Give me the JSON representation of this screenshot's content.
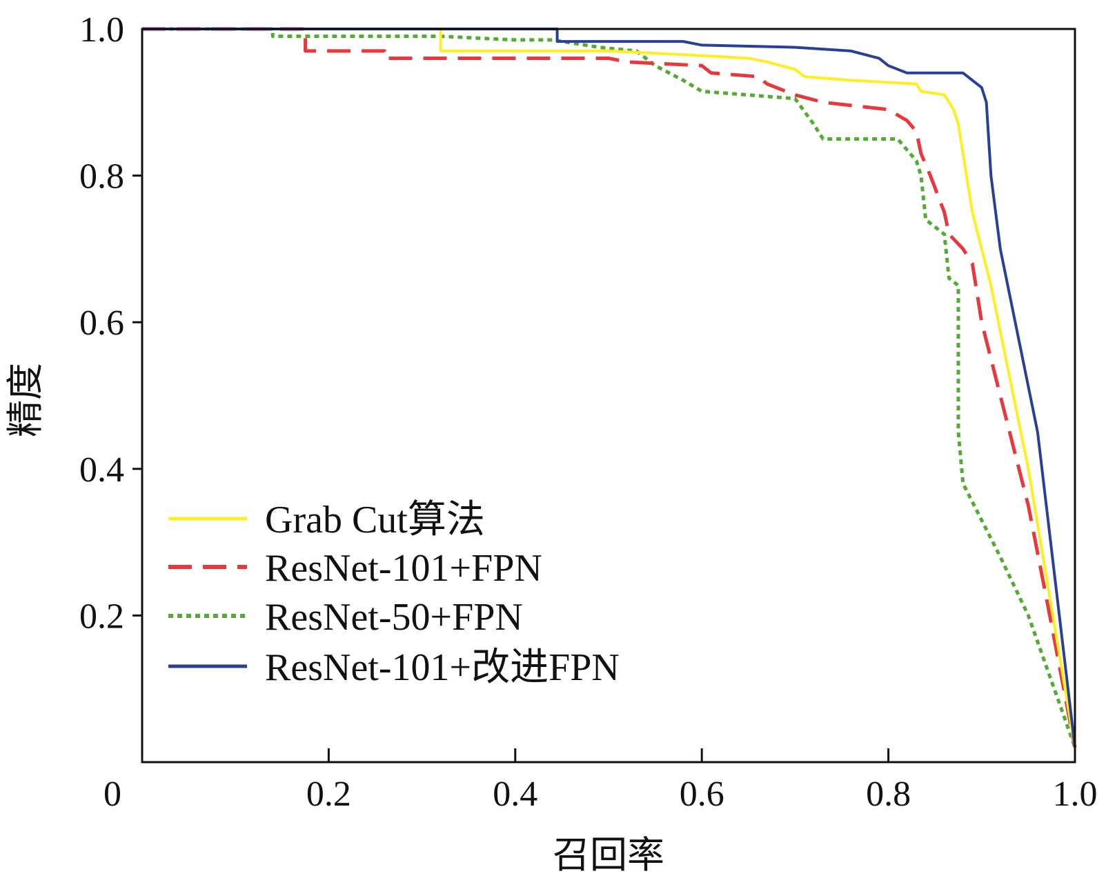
{
  "chart_data": {
    "type": "line",
    "title": "",
    "xlabel": "召回率",
    "ylabel": "精度",
    "xlim": [
      0,
      1.0
    ],
    "ylim": [
      0,
      1.0
    ],
    "x_ticks": [
      {
        "value": 0,
        "label": "0"
      },
      {
        "value": 0.2,
        "label": "0.2"
      },
      {
        "value": 0.4,
        "label": "0.4"
      },
      {
        "value": 0.6,
        "label": "0.6"
      },
      {
        "value": 0.8,
        "label": "0.8"
      },
      {
        "value": 1.0,
        "label": "1.0"
      }
    ],
    "y_ticks": [
      {
        "value": 0.2,
        "label": "0.2"
      },
      {
        "value": 0.4,
        "label": "0.4"
      },
      {
        "value": 0.6,
        "label": "0.6"
      },
      {
        "value": 0.8,
        "label": "0.8"
      },
      {
        "value": 1.0,
        "label": "1.0"
      }
    ],
    "grid": false,
    "legend_position": "lower-left",
    "series": [
      {
        "name": "Grab Cut算法",
        "color": "#ffee22",
        "style": "solid",
        "points": [
          [
            0,
            1.0
          ],
          [
            0.32,
            1.0
          ],
          [
            0.32,
            0.97
          ],
          [
            0.5,
            0.97
          ],
          [
            0.58,
            0.965
          ],
          [
            0.65,
            0.96
          ],
          [
            0.67,
            0.955
          ],
          [
            0.7,
            0.945
          ],
          [
            0.71,
            0.935
          ],
          [
            0.76,
            0.93
          ],
          [
            0.83,
            0.925
          ],
          [
            0.835,
            0.915
          ],
          [
            0.86,
            0.91
          ],
          [
            0.87,
            0.89
          ],
          [
            0.875,
            0.87
          ],
          [
            0.88,
            0.83
          ],
          [
            0.89,
            0.75
          ],
          [
            0.9,
            0.7
          ],
          [
            0.91,
            0.65
          ],
          [
            0.95,
            0.4
          ],
          [
            1.0,
            0.02
          ]
        ]
      },
      {
        "name": "ResNet-101+FPN",
        "color": "#e8383d",
        "style": "dashed",
        "points": [
          [
            0,
            1.0
          ],
          [
            0.175,
            1.0
          ],
          [
            0.175,
            0.97
          ],
          [
            0.26,
            0.97
          ],
          [
            0.26,
            0.96
          ],
          [
            0.5,
            0.96
          ],
          [
            0.52,
            0.955
          ],
          [
            0.6,
            0.95
          ],
          [
            0.61,
            0.94
          ],
          [
            0.66,
            0.935
          ],
          [
            0.67,
            0.925
          ],
          [
            0.7,
            0.91
          ],
          [
            0.73,
            0.9
          ],
          [
            0.8,
            0.89
          ],
          [
            0.82,
            0.875
          ],
          [
            0.83,
            0.86
          ],
          [
            0.835,
            0.83
          ],
          [
            0.845,
            0.8
          ],
          [
            0.86,
            0.75
          ],
          [
            0.865,
            0.72
          ],
          [
            0.88,
            0.7
          ],
          [
            0.89,
            0.68
          ],
          [
            0.9,
            0.6
          ],
          [
            0.92,
            0.5
          ],
          [
            0.95,
            0.35
          ],
          [
            0.97,
            0.22
          ],
          [
            1.0,
            0.02
          ]
        ]
      },
      {
        "name": "ResNet-50+FPN",
        "color": "#55aa33",
        "style": "dotted",
        "points": [
          [
            0,
            1.0
          ],
          [
            0.14,
            1.0
          ],
          [
            0.14,
            0.99
          ],
          [
            0.32,
            0.99
          ],
          [
            0.4,
            0.985
          ],
          [
            0.44,
            0.985
          ],
          [
            0.49,
            0.975
          ],
          [
            0.53,
            0.97
          ],
          [
            0.55,
            0.95
          ],
          [
            0.58,
            0.93
          ],
          [
            0.6,
            0.915
          ],
          [
            0.7,
            0.905
          ],
          [
            0.72,
            0.87
          ],
          [
            0.73,
            0.85
          ],
          [
            0.81,
            0.85
          ],
          [
            0.83,
            0.82
          ],
          [
            0.835,
            0.8
          ],
          [
            0.84,
            0.74
          ],
          [
            0.86,
            0.72
          ],
          [
            0.865,
            0.66
          ],
          [
            0.875,
            0.65
          ],
          [
            0.875,
            0.45
          ],
          [
            0.88,
            0.38
          ],
          [
            0.92,
            0.28
          ],
          [
            0.95,
            0.2
          ],
          [
            1.0,
            0.02
          ]
        ]
      },
      {
        "name": "ResNet-101+改进FPN",
        "color": "#2a3f96",
        "style": "solid",
        "points": [
          [
            0,
            1.0
          ],
          [
            0.445,
            1.0
          ],
          [
            0.445,
            0.983
          ],
          [
            0.58,
            0.983
          ],
          [
            0.6,
            0.978
          ],
          [
            0.7,
            0.975
          ],
          [
            0.76,
            0.97
          ],
          [
            0.79,
            0.96
          ],
          [
            0.8,
            0.95
          ],
          [
            0.82,
            0.94
          ],
          [
            0.88,
            0.94
          ],
          [
            0.9,
            0.92
          ],
          [
            0.905,
            0.9
          ],
          [
            0.91,
            0.8
          ],
          [
            0.92,
            0.7
          ],
          [
            0.96,
            0.45
          ],
          [
            1.0,
            0.02
          ]
        ]
      }
    ]
  }
}
